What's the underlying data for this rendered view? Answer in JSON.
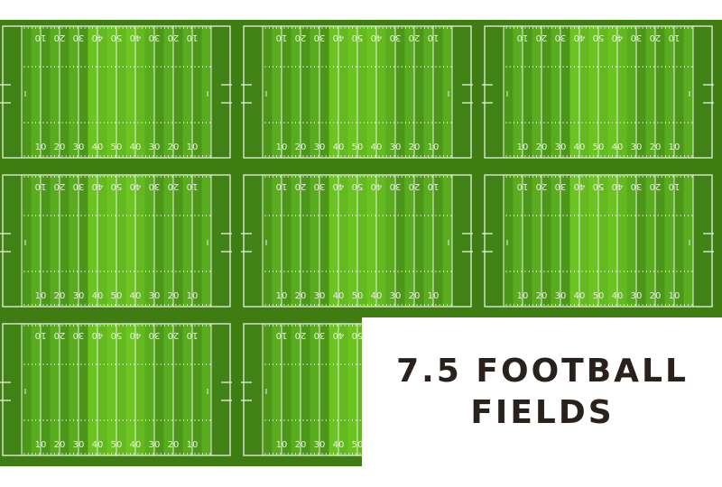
{
  "caption": {
    "line1": "7.5 FOOTBALL",
    "line2": "FIELDS"
  },
  "field": {
    "yard_numbers": [
      "10",
      "20",
      "30",
      "40",
      "50",
      "40",
      "30",
      "20",
      "10"
    ],
    "colors": {
      "turf_dark": "#3f7d13",
      "stripe_a": "#4c961a",
      "stripe_b": "#5aac1f",
      "stripe_center": "#6cc420",
      "lines": "#e8f0e0"
    }
  },
  "fields": [
    {
      "id": "field-1",
      "fraction": 1
    },
    {
      "id": "field-2",
      "fraction": 1
    },
    {
      "id": "field-3",
      "fraction": 1
    },
    {
      "id": "field-4",
      "fraction": 1
    },
    {
      "id": "field-5",
      "fraction": 1
    },
    {
      "id": "field-6",
      "fraction": 1
    },
    {
      "id": "field-7",
      "fraction": 1
    },
    {
      "id": "field-8",
      "fraction": 0.5
    }
  ]
}
